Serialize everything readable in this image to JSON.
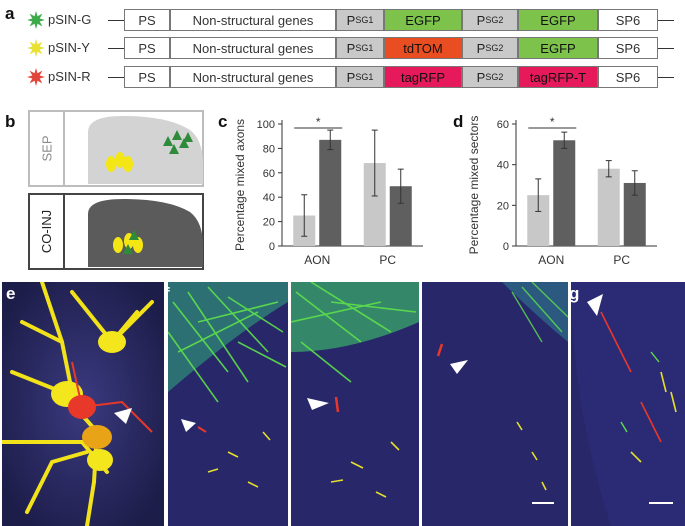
{
  "panels": {
    "a": "a",
    "b": "b",
    "c": "c",
    "d": "d",
    "e": "e",
    "f": "f",
    "g": "g"
  },
  "constructs": [
    {
      "name": "pSIN-G",
      "star_color": "#3daa4a",
      "boxes": {
        "ps": "PS",
        "nonstructural": "Non-structural genes",
        "p1": "P",
        "p1_sub": "SG1",
        "g1": "EGFP",
        "p2": "P",
        "p2_sub": "SG2",
        "g2": "EGFP",
        "sp6": "SP6"
      },
      "g1_color": "#7cc24b",
      "g2_color": "#7cc24b"
    },
    {
      "name": "pSIN-Y",
      "star_color": "#e8e033",
      "boxes": {
        "ps": "PS",
        "nonstructural": "Non-structural genes",
        "p1": "P",
        "p1_sub": "SG1",
        "g1": "tdTOM",
        "p2": "P",
        "p2_sub": "SG2",
        "g2": "EGFP",
        "sp6": "SP6"
      },
      "g1_color": "#e84e22",
      "g2_color": "#7cc24b"
    },
    {
      "name": "pSIN-R",
      "star_color": "#e3443a",
      "boxes": {
        "ps": "PS",
        "nonstructural": "Non-structural genes",
        "p1": "P",
        "p1_sub": "SG1",
        "g1": "tagRFP",
        "p2": "P",
        "p2_sub": "SG2",
        "g2": "tagRFP-T",
        "sp6": "SP6"
      },
      "g1_color": "#e6195a",
      "g2_color": "#e6195a"
    }
  ],
  "panel_b": {
    "sep_label": "SEP",
    "coinj_label": "CO-INJ",
    "dot_yellow": "#f4e614",
    "dot_green": "#2e8b3a"
  },
  "chart_data": [
    {
      "type": "bar",
      "panel": "c",
      "title": "",
      "xlabel": "",
      "ylabel": "Percentage mixed axons",
      "categories": [
        "AON",
        "PC"
      ],
      "ylim": [
        0,
        100
      ],
      "yticks": [
        0,
        20,
        40,
        60,
        80,
        100
      ],
      "series": [
        {
          "color": "#c8c8c8",
          "values": [
            25,
            68
          ],
          "errors": [
            17,
            27
          ]
        },
        {
          "color": "#5f5f5f",
          "values": [
            87,
            49
          ],
          "errors": [
            8,
            14
          ]
        }
      ],
      "significance": {
        "label": "*",
        "category": "AON"
      }
    },
    {
      "type": "bar",
      "panel": "d",
      "title": "",
      "xlabel": "",
      "ylabel": "Percentage mixed sectors",
      "categories": [
        "AON",
        "PC"
      ],
      "ylim": [
        0,
        60
      ],
      "yticks": [
        0,
        20,
        40,
        60
      ],
      "series": [
        {
          "color": "#c8c8c8",
          "values": [
            25,
            38
          ],
          "errors": [
            8,
            4
          ]
        },
        {
          "color": "#5f5f5f",
          "values": [
            52,
            31
          ],
          "errors": [
            4,
            6
          ]
        }
      ],
      "significance": {
        "label": "*",
        "category": "AON"
      }
    }
  ]
}
